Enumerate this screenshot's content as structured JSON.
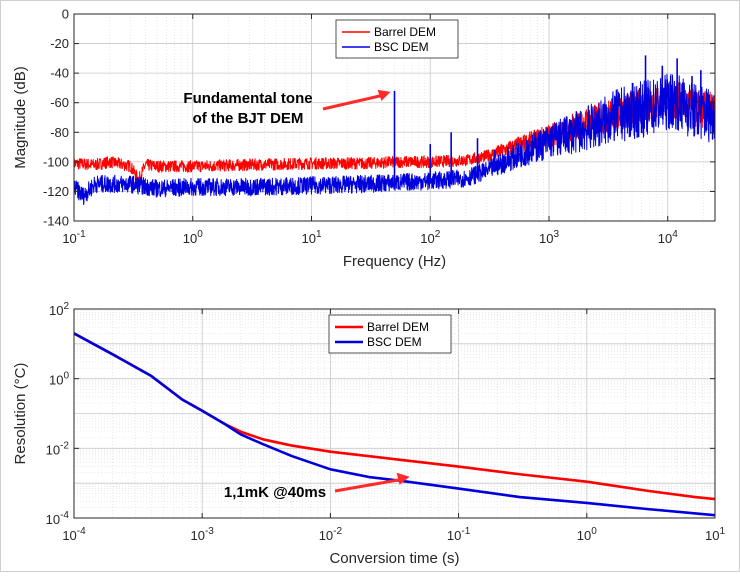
{
  "chart_data": [
    {
      "type": "line",
      "xlabel": "Frequency (Hz)",
      "ylabel": "Magnitude (dB)",
      "xscale": "log",
      "xlim": [
        0.1,
        25000
      ],
      "ylim": [
        -140,
        0
      ],
      "x_ticks": [
        {
          "value": 0.1,
          "base": "10",
          "exp": "-1"
        },
        {
          "value": 1,
          "base": "10",
          "exp": "0"
        },
        {
          "value": 10,
          "base": "10",
          "exp": "1"
        },
        {
          "value": 100,
          "base": "10",
          "exp": "2"
        },
        {
          "value": 1000,
          "base": "10",
          "exp": "3"
        },
        {
          "value": 10000,
          "base": "10",
          "exp": "4"
        }
      ],
      "y_ticks": [
        {
          "value": 0,
          "label": "0"
        },
        {
          "value": -20,
          "label": "-20"
        },
        {
          "value": -40,
          "label": "-40"
        },
        {
          "value": -60,
          "label": "-60"
        },
        {
          "value": -80,
          "label": "-80"
        },
        {
          "value": -100,
          "label": "-100"
        },
        {
          "value": -120,
          "label": "-120"
        },
        {
          "value": -140,
          "label": "-140"
        }
      ],
      "grid": true,
      "legend_position": "top-center",
      "series": [
        {
          "name": "Barrel DEM",
          "color": "#ff0000",
          "noise": 4,
          "points": [
            [
              0.1,
              -101
            ],
            [
              0.15,
              -102
            ],
            [
              0.2,
              -100
            ],
            [
              0.3,
              -103
            ],
            [
              0.35,
              -112
            ],
            [
              0.4,
              -102
            ],
            [
              0.5,
              -103
            ],
            [
              1,
              -103
            ],
            [
              3,
              -102
            ],
            [
              10,
              -101
            ],
            [
              30,
              -101
            ],
            [
              50,
              -100
            ],
            [
              100,
              -100
            ],
            [
              200,
              -99
            ],
            [
              300,
              -96
            ],
            [
              500,
              -90
            ],
            [
              1000,
              -82
            ],
            [
              2000,
              -74
            ],
            [
              4000,
              -66
            ],
            [
              8000,
              -61
            ],
            [
              11000,
              -58
            ],
            [
              13000,
              -60
            ],
            [
              17000,
              -64
            ],
            [
              25000,
              -66
            ]
          ],
          "spikes": []
        },
        {
          "name": "BSC DEM",
          "color": "#0000dd",
          "noise": 6,
          "points": [
            [
              0.1,
              -117
            ],
            [
              0.12,
              -123
            ],
            [
              0.15,
              -115
            ],
            [
              0.3,
              -115
            ],
            [
              0.5,
              -118
            ],
            [
              1,
              -117
            ],
            [
              3,
              -117
            ],
            [
              10,
              -116
            ],
            [
              30,
              -115
            ],
            [
              50,
              -114
            ],
            [
              100,
              -113
            ],
            [
              200,
              -111
            ],
            [
              300,
              -106
            ],
            [
              500,
              -97
            ],
            [
              1000,
              -86
            ],
            [
              2000,
              -78
            ],
            [
              4000,
              -68
            ],
            [
              8000,
              -62
            ],
            [
              11000,
              -58
            ],
            [
              13000,
              -61
            ],
            [
              17000,
              -66
            ],
            [
              25000,
              -68
            ]
          ],
          "spikes": [
            [
              50,
              -52
            ],
            [
              100,
              -88
            ],
            [
              150,
              -80
            ],
            [
              250,
              -84
            ],
            [
              350,
              -92
            ],
            [
              450,
              -90
            ],
            [
              650,
              -85
            ],
            [
              6500,
              -28
            ],
            [
              9000,
              -35
            ],
            [
              12000,
              -30
            ],
            [
              16000,
              -42
            ],
            [
              19000,
              -38
            ]
          ]
        }
      ],
      "annotation": {
        "lines": [
          "Fundamental tone",
          "of the BJT DEM"
        ],
        "target": [
          50,
          -52
        ]
      }
    },
    {
      "type": "line",
      "xlabel": "Conversion time (s)",
      "ylabel": "Resolution (°C)",
      "xscale": "log",
      "yscale": "log",
      "xlim": [
        0.0001,
        10
      ],
      "ylim": [
        0.0001,
        100
      ],
      "x_ticks": [
        {
          "value": 0.0001,
          "base": "10",
          "exp": "-4"
        },
        {
          "value": 0.001,
          "base": "10",
          "exp": "-3"
        },
        {
          "value": 0.01,
          "base": "10",
          "exp": "-2"
        },
        {
          "value": 0.1,
          "base": "10",
          "exp": "-1"
        },
        {
          "value": 1,
          "base": "10",
          "exp": "0"
        },
        {
          "value": 10,
          "base": "10",
          "exp": "1"
        }
      ],
      "y_ticks": [
        {
          "value": 0.0001,
          "base": "10",
          "exp": "-4"
        },
        {
          "value": 0.01,
          "base": "10",
          "exp": "-2"
        },
        {
          "value": 1,
          "base": "10",
          "exp": "0"
        },
        {
          "value": 100,
          "base": "10",
          "exp": "2"
        }
      ],
      "grid": true,
      "legend_position": "top-right",
      "series": [
        {
          "name": "Barrel DEM",
          "color": "#ff0000",
          "points": [
            [
              0.0001,
              20
            ],
            [
              0.0002,
              5
            ],
            [
              0.0004,
              1.2
            ],
            [
              0.0007,
              0.25
            ],
            [
              0.001,
              0.12
            ],
            [
              0.0015,
              0.05
            ],
            [
              0.002,
              0.03
            ],
            [
              0.003,
              0.018
            ],
            [
              0.005,
              0.012
            ],
            [
              0.01,
              0.008
            ],
            [
              0.03,
              0.005
            ],
            [
              0.1,
              0.003
            ],
            [
              0.3,
              0.0018
            ],
            [
              1,
              0.0011
            ],
            [
              3,
              0.0006
            ],
            [
              7,
              0.0004
            ],
            [
              10,
              0.00035
            ]
          ]
        },
        {
          "name": "BSC DEM",
          "color": "#0000dd",
          "points": [
            [
              0.0001,
              20
            ],
            [
              0.0002,
              5
            ],
            [
              0.0004,
              1.2
            ],
            [
              0.0007,
              0.25
            ],
            [
              0.001,
              0.12
            ],
            [
              0.0015,
              0.05
            ],
            [
              0.002,
              0.025
            ],
            [
              0.003,
              0.013
            ],
            [
              0.005,
              0.006
            ],
            [
              0.01,
              0.0025
            ],
            [
              0.02,
              0.0015
            ],
            [
              0.04,
              0.0011
            ],
            [
              0.1,
              0.0007
            ],
            [
              0.3,
              0.0004
            ],
            [
              1,
              0.00027
            ],
            [
              3,
              0.00018
            ],
            [
              10,
              0.00012
            ]
          ]
        }
      ],
      "annotation": {
        "lines": [
          "1,1mK @40ms"
        ],
        "target": [
          0.04,
          0.0011
        ]
      }
    }
  ]
}
